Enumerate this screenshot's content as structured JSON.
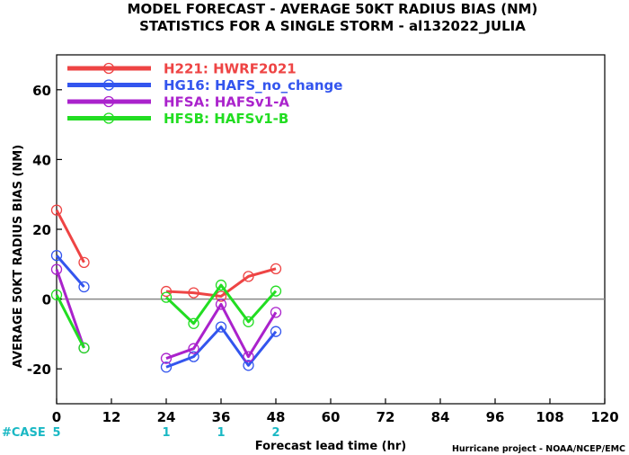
{
  "chart_data": {
    "type": "line",
    "title": "MODEL FORECAST - AVERAGE 50KT RADIUS BIAS (NM)",
    "subtitle": "STATISTICS FOR A SINGLE STORM - al132022_JULIA",
    "xlabel": "Forecast lead time (hr)",
    "ylabel": "AVERAGE 50KT RADIUS BIAS (NM)",
    "xlim": [
      0,
      120
    ],
    "ylim": [
      -30,
      70
    ],
    "xticks": [
      0,
      12,
      24,
      36,
      48,
      60,
      72,
      84,
      96,
      108,
      120
    ],
    "yticks": [
      -20,
      0,
      20,
      40,
      60
    ],
    "grid": false,
    "legend_position": "top-left",
    "series": [
      {
        "name": "H221: HWRF2021",
        "color": "#ee4444",
        "segments": [
          [
            [
              0,
              25.5
            ],
            [
              6,
              10.5
            ]
          ],
          [
            [
              24,
              2.2
            ],
            [
              30,
              1.8
            ],
            [
              36,
              0.8
            ],
            [
              42,
              6.5
            ],
            [
              48,
              8.7
            ]
          ]
        ]
      },
      {
        "name": "HG16: HAFS_no_change",
        "color": "#3355ee",
        "segments": [
          [
            [
              0,
              12.5
            ],
            [
              6,
              3.5
            ]
          ],
          [
            [
              24,
              -19.5
            ],
            [
              30,
              -16.5
            ],
            [
              36,
              -8
            ],
            [
              42,
              -19
            ],
            [
              48,
              -9.3
            ]
          ]
        ]
      },
      {
        "name": "HFSA: HAFSv1-A",
        "color": "#aa22cc",
        "segments": [
          [
            [
              0,
              8.5
            ],
            [
              6,
              -14
            ]
          ],
          [
            [
              24,
              -17
            ],
            [
              30,
              -14.2
            ],
            [
              36,
              -1.5
            ],
            [
              42,
              -16.5
            ],
            [
              48,
              -3.8
            ]
          ]
        ]
      },
      {
        "name": "HFSB: HAFSv1-B",
        "color": "#22dd22",
        "segments": [
          [
            [
              0,
              1.2
            ],
            [
              6,
              -14
            ]
          ],
          [
            [
              24,
              0.5
            ],
            [
              30,
              -7
            ],
            [
              36,
              4
            ],
            [
              42,
              -6.5
            ],
            [
              48,
              2.3
            ]
          ]
        ]
      }
    ],
    "cases": {
      "label": "#CASE",
      "values": [
        {
          "x": 0,
          "n": "5"
        },
        {
          "x": 24,
          "n": "1"
        },
        {
          "x": 36,
          "n": "1"
        },
        {
          "x": 48,
          "n": "2"
        }
      ]
    },
    "credit": "Hurricane project - NOAA/NCEP/EMC"
  }
}
